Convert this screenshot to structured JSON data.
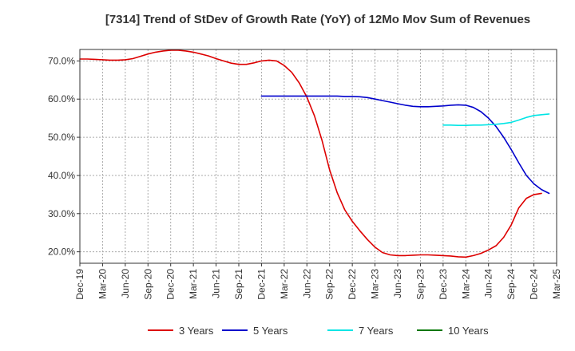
{
  "chart_data": {
    "type": "line",
    "title": "[7314]  Trend of StDev of Growth Rate (YoY) of 12Mo Mov Sum of Revenues",
    "xlabel": "",
    "ylabel": "",
    "ylim": [
      17.0,
      73.0
    ],
    "y_ticks": [
      20,
      30,
      40,
      50,
      60,
      70
    ],
    "y_tick_labels": [
      "20.0%",
      "30.0%",
      "40.0%",
      "50.0%",
      "60.0%",
      "70.0%"
    ],
    "x_tick_labels": [
      "Dec-19",
      "Mar-20",
      "Jun-20",
      "Sep-20",
      "Dec-20",
      "Mar-21",
      "Jun-21",
      "Sep-21",
      "Dec-21",
      "Mar-22",
      "Jun-22",
      "Sep-22",
      "Dec-22",
      "Mar-23",
      "Jun-23",
      "Sep-23",
      "Dec-23",
      "Mar-24",
      "Jun-24",
      "Sep-24",
      "Dec-24",
      "Mar-25"
    ],
    "grid": true,
    "legend_position": "bottom",
    "series": [
      {
        "name": "3 Years",
        "color": "#dd0000",
        "start_index": 0,
        "values": [
          70.5,
          70.5,
          70.4,
          70.3,
          70.2,
          70.2,
          70.3,
          70.6,
          71.2,
          71.8,
          72.3,
          72.6,
          72.8,
          72.8,
          72.6,
          72.3,
          71.8,
          71.3,
          70.6,
          70.0,
          69.4,
          69.1,
          69.1,
          69.5,
          70.0,
          70.2,
          70.0,
          68.8,
          67.0,
          64.2,
          60.5,
          55.6,
          49.2,
          41.5,
          35.5,
          31.0,
          28.0,
          25.5,
          23.2,
          21.2,
          19.8,
          19.2,
          19.0,
          19.0,
          19.1,
          19.2,
          19.2,
          19.1,
          19.0,
          18.9,
          18.7,
          18.6,
          19.0,
          19.6,
          20.5,
          21.6,
          23.8,
          27.0,
          31.5,
          34.0,
          35.0,
          35.3
        ]
      },
      {
        "name": "5 Years",
        "color": "#0000cc",
        "start_index": 24,
        "values": [
          60.8,
          60.8,
          60.8,
          60.8,
          60.8,
          60.8,
          60.8,
          60.8,
          60.8,
          60.8,
          60.8,
          60.7,
          60.7,
          60.6,
          60.4,
          60.0,
          59.6,
          59.2,
          58.8,
          58.4,
          58.1,
          58.0,
          58.0,
          58.1,
          58.2,
          58.4,
          58.5,
          58.4,
          57.8,
          56.7,
          55.0,
          52.8,
          50.0,
          46.8,
          43.3,
          40.0,
          37.8,
          36.3,
          35.3
        ]
      },
      {
        "name": "7 Years",
        "color": "#00e5e5",
        "start_index": 48,
        "values": [
          53.2,
          53.2,
          53.1,
          53.1,
          53.2,
          53.2,
          53.3,
          53.4,
          53.6,
          53.9,
          54.5,
          55.2,
          55.7,
          55.9,
          56.1
        ]
      },
      {
        "name": "10 Years",
        "color": "#007700",
        "start_index": 0,
        "values": []
      }
    ]
  }
}
